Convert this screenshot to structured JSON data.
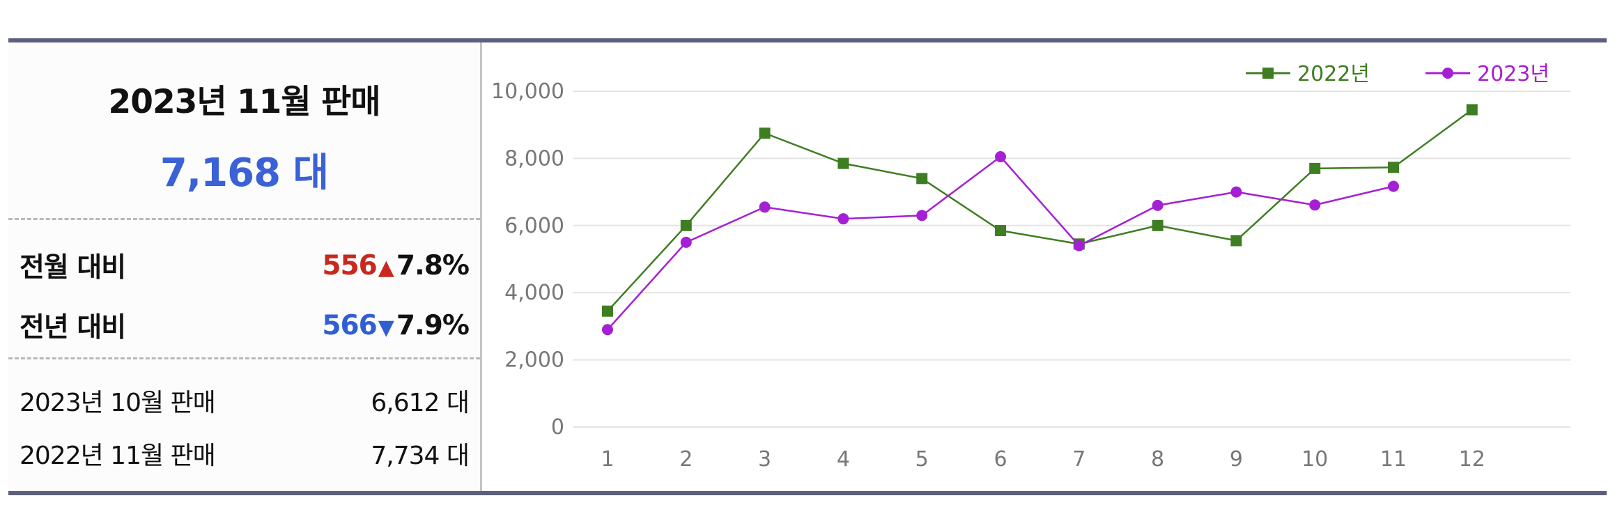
{
  "summary": {
    "title": "2023년 11월 판매",
    "total": "7,168 대",
    "mom": {
      "label": "전월 대비",
      "change": "556",
      "arrow": "▲",
      "percent": "7.8%"
    },
    "yoy": {
      "label": "전년 대비",
      "change": "566",
      "arrow": "▼",
      "percent": "7.9%"
    },
    "prev_month": {
      "label": "2023년 10월 판매",
      "value": "6,612 대"
    },
    "prev_year": {
      "label": "2022년 11월 판매",
      "value": "7,734 대"
    }
  },
  "colors": {
    "accent_blue": "#3a62d6",
    "up_red": "#c8281e",
    "down_blue": "#2f5fd2",
    "series_2022": "#3f7d22",
    "series_2023": "#a51fd4"
  },
  "chart_data": {
    "type": "line",
    "x": [
      "1",
      "2",
      "3",
      "4",
      "5",
      "6",
      "7",
      "8",
      "9",
      "10",
      "11",
      "12"
    ],
    "ylim": [
      0,
      10000
    ],
    "yticks": [
      "0",
      "2,000",
      "4,000",
      "6,000",
      "8,000",
      "10,000"
    ],
    "ytick_values": [
      0,
      2000,
      4000,
      6000,
      8000,
      10000
    ],
    "grid": true,
    "legend_position": "top-right",
    "series": [
      {
        "name": "2022년",
        "marker": "square",
        "color": "#3f7d22",
        "values": [
          3450,
          6000,
          8750,
          7850,
          7400,
          5850,
          5450,
          6000,
          5550,
          7700,
          7734,
          9450
        ]
      },
      {
        "name": "2023년",
        "marker": "circle",
        "color": "#a51fd4",
        "values": [
          2900,
          5500,
          6550,
          6200,
          6300,
          8050,
          5400,
          6600,
          7000,
          6612,
          7168,
          null
        ]
      }
    ]
  }
}
